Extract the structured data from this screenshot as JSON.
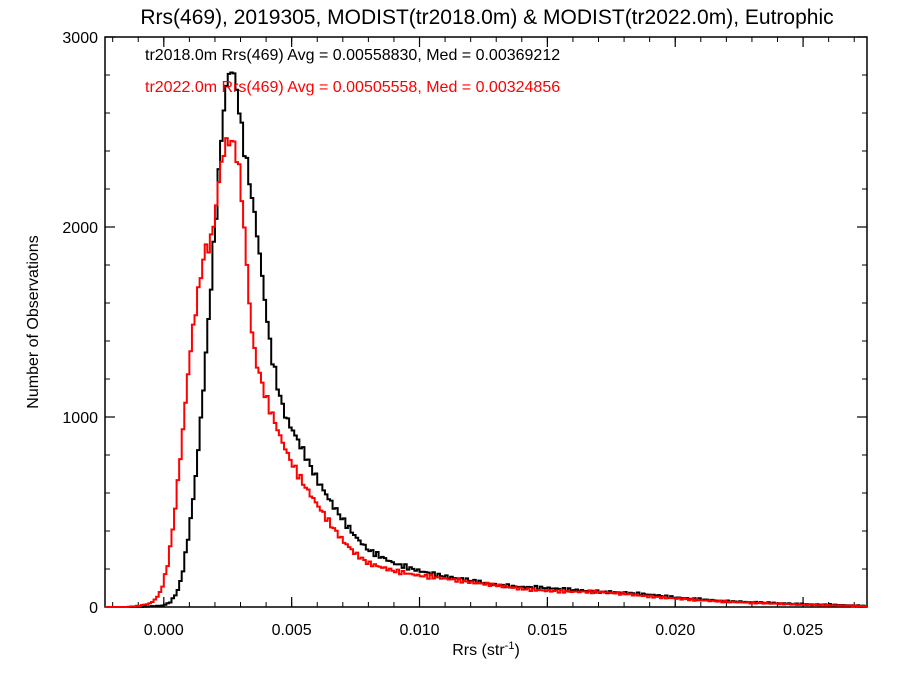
{
  "chart_data": {
    "type": "line",
    "title": "Rrs(469), 2019305, MODIST(tr2018.0m) & MODIST(tr2022.0m), Eutrophic",
    "xlabel_main": "Rrs (str",
    "xlabel_sup": "-1",
    "xlabel_close": ")",
    "ylabel": "Number of Observations",
    "xlim": [
      -0.0023,
      0.0275
    ],
    "ylim": [
      0,
      3000
    ],
    "x_ticks": [
      0.0,
      0.005,
      0.01,
      0.015,
      0.02,
      0.025
    ],
    "x_tick_labels": [
      "0.000",
      "0.005",
      "0.010",
      "0.015",
      "0.020",
      "0.025"
    ],
    "y_ticks": [
      0,
      1000,
      2000,
      3000
    ],
    "y_tick_labels": [
      "0",
      "1000",
      "2000",
      "3000"
    ],
    "grid": false,
    "annotations": [
      "tr2018.0m Rrs(469) Avg = 0.00558830, Med = 0.00369212",
      "tr2022.0m Rrs(469) Avg = 0.00505558, Med = 0.00324856"
    ],
    "series": [
      {
        "name": "tr2018.0m",
        "color": "#000000",
        "points": [
          [
            -0.0023,
            0
          ],
          [
            -0.001,
            0
          ],
          [
            -0.0005,
            3
          ],
          [
            0.0,
            8
          ],
          [
            0.0003,
            30
          ],
          [
            0.0006,
            100
          ],
          [
            0.0008,
            230
          ],
          [
            0.001,
            410
          ],
          [
            0.0012,
            620
          ],
          [
            0.0014,
            900
          ],
          [
            0.0016,
            1240
          ],
          [
            0.0018,
            1600
          ],
          [
            0.002,
            1980
          ],
          [
            0.0022,
            2380
          ],
          [
            0.0024,
            2700
          ],
          [
            0.0026,
            2840
          ],
          [
            0.0028,
            2780
          ],
          [
            0.003,
            2560
          ],
          [
            0.0032,
            2370
          ],
          [
            0.0034,
            2200
          ],
          [
            0.0036,
            2020
          ],
          [
            0.0038,
            1800
          ],
          [
            0.004,
            1560
          ],
          [
            0.0042,
            1340
          ],
          [
            0.0045,
            1130
          ],
          [
            0.0048,
            990
          ],
          [
            0.0052,
            890
          ],
          [
            0.0056,
            780
          ],
          [
            0.006,
            670
          ],
          [
            0.0065,
            560
          ],
          [
            0.007,
            460
          ],
          [
            0.0075,
            370
          ],
          [
            0.008,
            300
          ],
          [
            0.009,
            230
          ],
          [
            0.01,
            190
          ],
          [
            0.011,
            160
          ],
          [
            0.012,
            140
          ],
          [
            0.013,
            115
          ],
          [
            0.014,
            105
          ],
          [
            0.015,
            100
          ],
          [
            0.016,
            90
          ],
          [
            0.017,
            80
          ],
          [
            0.018,
            75
          ],
          [
            0.019,
            65
          ],
          [
            0.02,
            50
          ],
          [
            0.021,
            40
          ],
          [
            0.022,
            30
          ],
          [
            0.023,
            25
          ],
          [
            0.024,
            20
          ],
          [
            0.025,
            15
          ],
          [
            0.026,
            12
          ],
          [
            0.027,
            8
          ],
          [
            0.0275,
            5
          ]
        ]
      },
      {
        "name": "tr2022.0m",
        "color": "#ff0000",
        "points": [
          [
            -0.0023,
            0
          ],
          [
            -0.0015,
            0
          ],
          [
            -0.001,
            5
          ],
          [
            -0.0005,
            20
          ],
          [
            -0.0002,
            60
          ],
          [
            0.0,
            130
          ],
          [
            0.0002,
            260
          ],
          [
            0.0004,
            460
          ],
          [
            0.0006,
            720
          ],
          [
            0.0008,
            1000
          ],
          [
            0.001,
            1300
          ],
          [
            0.0012,
            1520
          ],
          [
            0.0014,
            1700
          ],
          [
            0.0016,
            1880
          ],
          [
            0.0018,
            1900
          ],
          [
            0.002,
            2050
          ],
          [
            0.0022,
            2300
          ],
          [
            0.0024,
            2430
          ],
          [
            0.0026,
            2460
          ],
          [
            0.0028,
            2420
          ],
          [
            0.003,
            2250
          ],
          [
            0.0032,
            1900
          ],
          [
            0.0034,
            1500
          ],
          [
            0.0036,
            1300
          ],
          [
            0.0038,
            1200
          ],
          [
            0.004,
            1100
          ],
          [
            0.0043,
            990
          ],
          [
            0.0046,
            880
          ],
          [
            0.005,
            760
          ],
          [
            0.0055,
            640
          ],
          [
            0.006,
            540
          ],
          [
            0.0065,
            440
          ],
          [
            0.007,
            350
          ],
          [
            0.0075,
            280
          ],
          [
            0.008,
            230
          ],
          [
            0.009,
            190
          ],
          [
            0.01,
            165
          ],
          [
            0.011,
            150
          ],
          [
            0.012,
            130
          ],
          [
            0.013,
            115
          ],
          [
            0.014,
            95
          ],
          [
            0.015,
            85
          ],
          [
            0.016,
            80
          ],
          [
            0.017,
            80
          ],
          [
            0.018,
            70
          ],
          [
            0.019,
            55
          ],
          [
            0.02,
            45
          ],
          [
            0.021,
            35
          ],
          [
            0.022,
            28
          ],
          [
            0.023,
            22
          ],
          [
            0.024,
            17
          ],
          [
            0.025,
            12
          ],
          [
            0.026,
            9
          ],
          [
            0.027,
            6
          ],
          [
            0.0275,
            4
          ]
        ]
      }
    ]
  }
}
